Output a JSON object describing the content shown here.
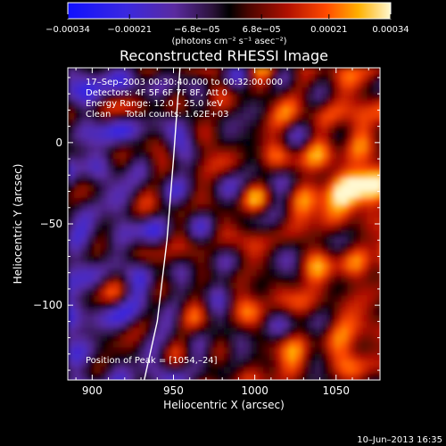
{
  "chart_data": {
    "type": "heatmap",
    "title": "Reconstructed RHESSI Image",
    "xlabel": "Heliocentric X (arcsec)",
    "ylabel": "Heliocentric Y (arcsec)",
    "xlim": [
      885,
      1077
    ],
    "ylim": [
      -146,
      46
    ],
    "x_ticks": [
      900,
      950,
      1000,
      1050
    ],
    "y_ticks": [
      0,
      -50,
      -100
    ],
    "x_tick_labels": [
      "900",
      "950",
      "1000",
      "1050"
    ],
    "y_tick_labels": [
      "0",
      "−50",
      "−100"
    ],
    "colorbar": {
      "range": [
        -0.00034,
        0.00034
      ],
      "ticks": [
        -0.00034,
        -0.00021,
        -6.8e-05,
        6.8e-05,
        0.00021,
        0.00034
      ],
      "tick_labels": [
        "−0.00034",
        "−0.00021",
        "−6.8e−05",
        "6.8e−05",
        "0.00021",
        "0.00034"
      ],
      "units_text": "(photons cm⁻² s⁻¹ asec⁻²)"
    },
    "annotations": [
      "17–Sep–2003 00:30:40.000 to 00:32:00.000",
      "Detectors: 4F 5F 6F 7F 8F, Att 0",
      "Energy Range: 12.0 – 25.0 keV",
      "Clean     Total counts: 1.62E+03"
    ],
    "peak_label": "Position of Peak = [1054,–24]",
    "peak_position": [
      1054,
      -24
    ],
    "limb_curve": [
      [
        954,
        46
      ],
      [
        950,
        -10
      ],
      [
        946,
        -60
      ],
      [
        940,
        -110
      ],
      [
        932,
        -146
      ]
    ],
    "grid": false,
    "legend": "none"
  },
  "footer": {
    "timestamp": "10–Jun–2013 16:35"
  }
}
